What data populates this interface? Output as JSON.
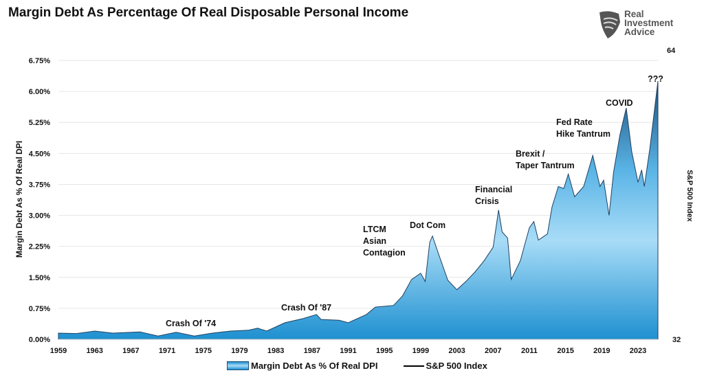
{
  "title": "Margin Debt As Percentage Of Real Disposable Personal Income",
  "logo": {
    "text": [
      "Real",
      "Investment",
      "Advice"
    ],
    "icon": "eagle-shield-icon"
  },
  "chart_data": {
    "type": "area",
    "title": "Margin Debt As Percentage Of Real Disposable Personal Income",
    "ylabel": "Margin Debt As % Of Real DPI",
    "y2label": "S&P 500 Index",
    "ylim": [
      0,
      6.75
    ],
    "yticks": [
      "0.00%",
      "0.75%",
      "1.50%",
      "2.25%",
      "3.00%",
      "3.75%",
      "4.50%",
      "5.25%",
      "6.00%",
      "6.75%"
    ],
    "y2lim": [
      32,
      64
    ],
    "y2ticks": [
      "32",
      "64"
    ],
    "xlim": [
      1959,
      2025.2
    ],
    "xticks": [
      "1959",
      "1963",
      "1967",
      "1971",
      "1975",
      "1979",
      "1983",
      "1987",
      "1991",
      "1995",
      "1999",
      "2003",
      "2007",
      "2011",
      "2015",
      "2019",
      "2023"
    ],
    "grid": true,
    "legend": "bottom",
    "colors": {
      "area_top": "#1b4f7a",
      "area_mid": "#9ad6f5",
      "area_bottom": "#1e90d0",
      "outline": "#1f3f5f"
    },
    "series": [
      {
        "name": "Margin Debt As % Of Real DPI",
        "type": "area",
        "x": [
          1959,
          1961,
          1963,
          1965,
          1968,
          1970,
          1972,
          1974,
          1976,
          1978,
          1980,
          1981,
          1982,
          1984,
          1986,
          1987.5,
          1988,
          1990,
          1991,
          1993,
          1994,
          1996,
          1997,
          1998,
          1999,
          1999.5,
          2000,
          2000.3,
          2001,
          2002,
          2003,
          2004,
          2005,
          2006,
          2007,
          2007.6,
          2008,
          2008.6,
          2009,
          2010,
          2011,
          2011.5,
          2012,
          2013,
          2013.5,
          2014.2,
          2014.8,
          2015.3,
          2016,
          2017,
          2018,
          2018.8,
          2019.2,
          2019.8,
          2020.3,
          2021,
          2021.7,
          2022.3,
          2023,
          2023.4,
          2023.7,
          2024.3,
          2025.2
        ],
        "values": [
          0.15,
          0.14,
          0.2,
          0.15,
          0.18,
          0.08,
          0.17,
          0.08,
          0.15,
          0.2,
          0.22,
          0.27,
          0.2,
          0.4,
          0.5,
          0.6,
          0.48,
          0.46,
          0.4,
          0.6,
          0.78,
          0.82,
          1.05,
          1.45,
          1.6,
          1.4,
          2.35,
          2.5,
          2.05,
          1.43,
          1.2,
          1.4,
          1.63,
          1.9,
          2.23,
          3.13,
          2.6,
          2.45,
          1.45,
          1.9,
          2.7,
          2.85,
          2.4,
          2.55,
          3.2,
          3.7,
          3.65,
          4.0,
          3.45,
          3.7,
          4.45,
          3.7,
          3.85,
          3.0,
          4.05,
          4.95,
          5.6,
          4.55,
          3.8,
          4.1,
          3.7,
          4.6,
          6.25
        ]
      },
      {
        "name": "S&P 500 Index",
        "type": "line",
        "values": []
      }
    ],
    "annotations": [
      "Crash Of '74",
      "Crash Of '87",
      "LTCM\nAsian\nContagion",
      "Dot Com",
      "Financial\nCrisis",
      "Brexit /\nTaper Tantrum",
      "Fed Rate\nHike Tantrum",
      "COVID",
      "???"
    ]
  },
  "legend": {
    "items": [
      "Margin Debt As % Of Real DPI",
      "S&P 500 Index"
    ]
  }
}
